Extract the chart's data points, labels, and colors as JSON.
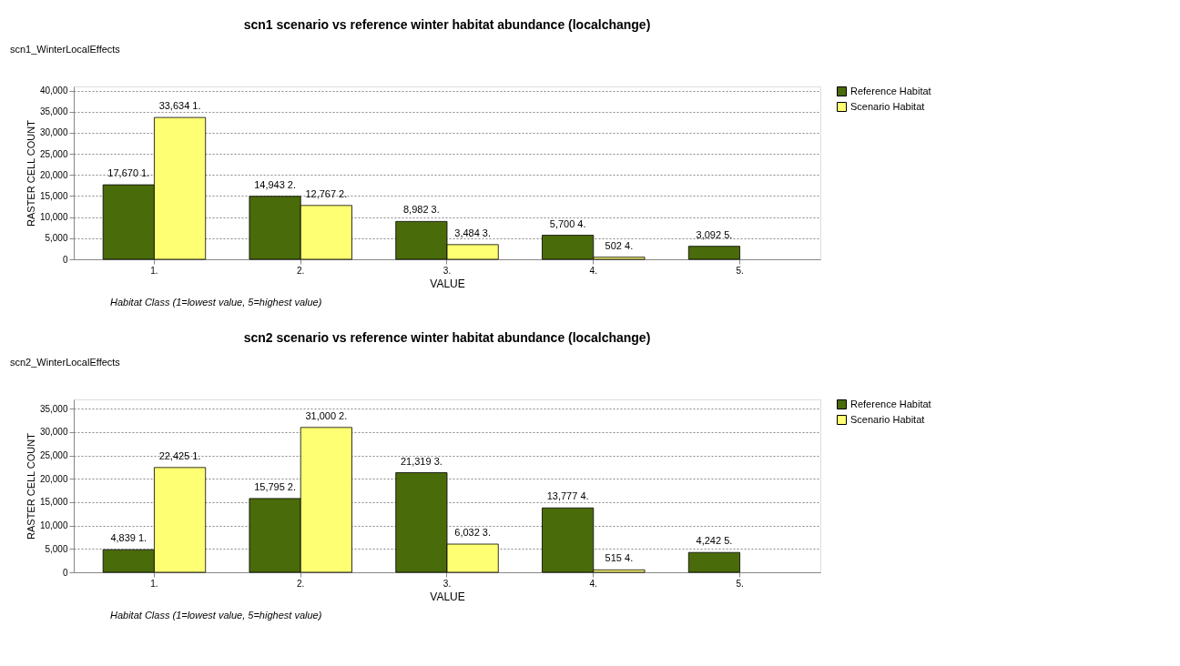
{
  "chart_data": [
    {
      "type": "bar",
      "title": "scn1 scenario vs reference winter habitat abundance (localchange)",
      "xlabel": "VALUE",
      "ylabel": "RASTER CELL COUNT",
      "categories": [
        "1.",
        "2.",
        "3.",
        "4.",
        "5."
      ],
      "series": [
        {
          "name": "Reference Habitat",
          "color": "#4a6b0a",
          "values": [
            17670,
            14943,
            8982,
            5700,
            3092
          ],
          "value_labels": [
            "17,670 1.",
            "14,943 2.",
            "8,982 3.",
            "5,700 4.",
            "3,092 5."
          ]
        },
        {
          "name": "Scenario Habitat",
          "color": "#ffff73",
          "values": [
            33634,
            12767,
            3484,
            502,
            null
          ],
          "value_labels": [
            "33,634 1.",
            "12,767 2.",
            "3,484 3.",
            "502 4.",
            null
          ]
        }
      ],
      "ylim": [
        0,
        41000
      ],
      "yticks": [
        {
          "value": 0,
          "label": "0"
        },
        {
          "value": 5000,
          "label": "5,000"
        },
        {
          "value": 10000,
          "label": "10,000"
        },
        {
          "value": 15000,
          "label": "15,000"
        },
        {
          "value": 20000,
          "label": "20,000"
        },
        {
          "value": 25000,
          "label": "25,000"
        },
        {
          "value": 30000,
          "label": "30,000"
        },
        {
          "value": 35000,
          "label": "35,000"
        },
        {
          "value": 40000,
          "label": "40,000"
        }
      ],
      "grid": "y",
      "legend": "top right",
      "annotations": [
        "scn1_WinterLocalEffects",
        "Habitat Class (1=lowest value, 5=highest value)"
      ]
    },
    {
      "type": "bar",
      "title": "scn2 scenario vs reference winter habitat abundance (localchange)",
      "xlabel": "VALUE",
      "ylabel": "RASTER CELL COUNT",
      "categories": [
        "1.",
        "2.",
        "3.",
        "4.",
        "5."
      ],
      "series": [
        {
          "name": "Reference Habitat",
          "color": "#4a6b0a",
          "values": [
            4839,
            15795,
            21319,
            13777,
            4242
          ],
          "value_labels": [
            "4,839 1.",
            "15,795 2.",
            "21,319 3.",
            "13,777 4.",
            "4,242 5."
          ]
        },
        {
          "name": "Scenario Habitat",
          "color": "#ffff73",
          "values": [
            22425,
            31000,
            6032,
            515,
            null
          ],
          "value_labels": [
            "22,425 1.",
            "31,000 2.",
            "6,032 3.",
            "515 4.",
            null
          ]
        }
      ],
      "ylim": [
        0,
        37000
      ],
      "yticks": [
        {
          "value": 0,
          "label": "0"
        },
        {
          "value": 5000,
          "label": "5,000"
        },
        {
          "value": 10000,
          "label": "10,000"
        },
        {
          "value": 15000,
          "label": "15,000"
        },
        {
          "value": 20000,
          "label": "20,000"
        },
        {
          "value": 25000,
          "label": "25,000"
        },
        {
          "value": 30000,
          "label": "30,000"
        },
        {
          "value": 35000,
          "label": "35,000"
        }
      ],
      "grid": "y",
      "legend": "top right",
      "annotations": [
        "scn2_WinterLocalEffects",
        "Habitat Class (1=lowest value, 5=highest value)"
      ]
    }
  ]
}
